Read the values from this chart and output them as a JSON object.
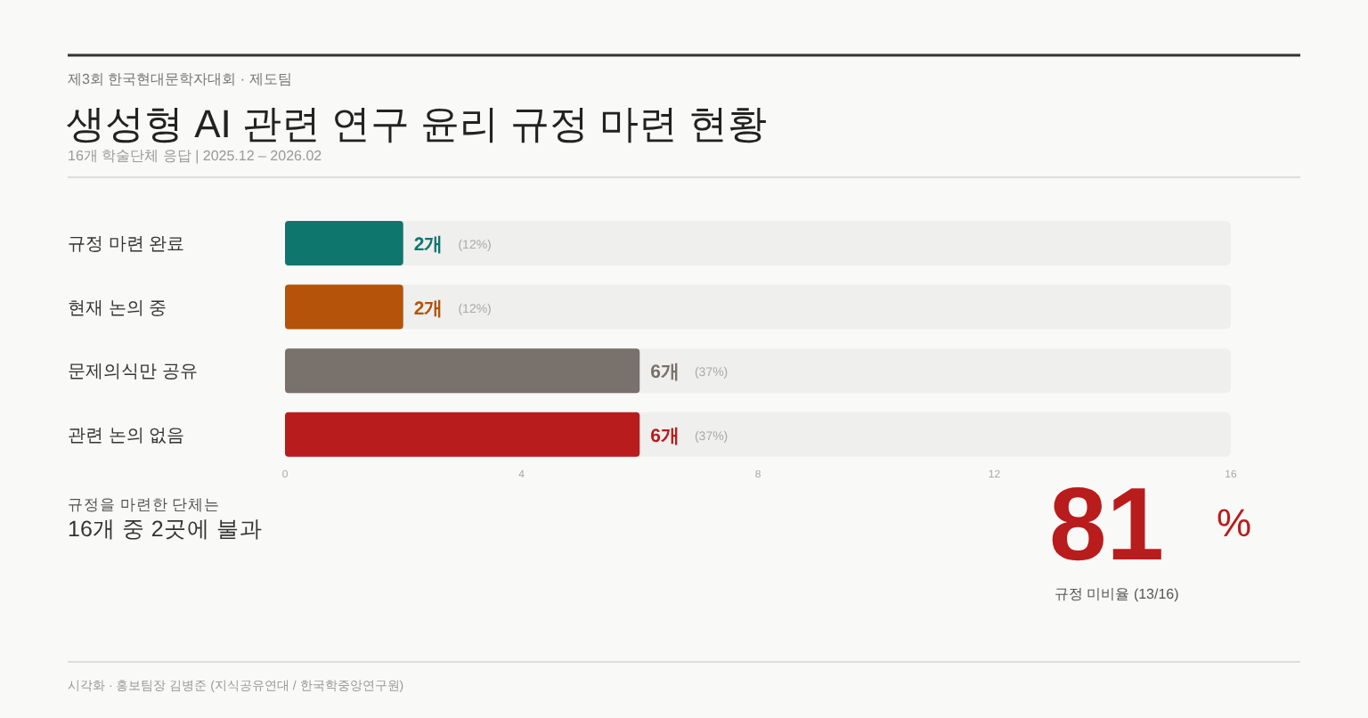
{
  "chart_data": {
    "type": "bar",
    "orientation": "horizontal",
    "title": "생성형 AI 관련 연구 윤리 규정 마련 현황",
    "subtitle": "16개 학술단체 응답 | 2025.12 – 2026.02",
    "categories": [
      "규정 마련 완료",
      "현재 논의 중",
      "문제의식만 공유",
      "관련 논의 없음"
    ],
    "values": [
      2,
      2,
      6,
      6
    ],
    "colors": [
      "#0f766e",
      "#b45309",
      "#78716c",
      "#b91c1c"
    ],
    "value_labels": [
      "2개",
      "2개",
      "6개",
      "6개"
    ],
    "xlim": [
      0,
      16
    ],
    "xticks": [
      0,
      4,
      8,
      12,
      16
    ],
    "annotations": [
      "제3회 한국현대문학자대회 · 제도팀",
      "(12%)",
      "(12%)",
      "(37%)",
      "(37%)",
      "규정을 마련한 단체는",
      "16개 중 2곳에 불과",
      "81",
      "%",
      "규정 미비율 (13/16)",
      "시각화 · 홍보팀장 김병준 (지식공유연대 / 한국학중앙연구원)"
    ]
  }
}
